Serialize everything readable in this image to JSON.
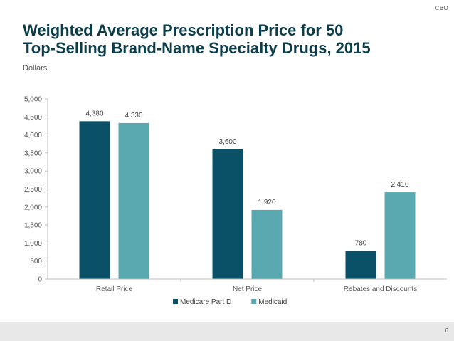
{
  "header": {
    "brand": "CBO",
    "title_line1": "Weighted Average Prescription Price for 50",
    "title_line2": "Top-Selling Brand-Name Specialty Drugs, 2015",
    "subtitle": "Dollars"
  },
  "chart_data": {
    "type": "bar",
    "title": "Weighted Average Prescription Price for 50 Top-Selling Brand-Name Specialty Drugs, 2015",
    "ylabel": "Dollars",
    "xlabel": "",
    "categories": [
      "Retail Price",
      "Net Price",
      "Rebates and Discounts"
    ],
    "series": [
      {
        "name": "Medicare Part D",
        "color": "#0a5168",
        "values": [
          4380,
          3600,
          780
        ]
      },
      {
        "name": "Medicaid",
        "color": "#5aa9b1",
        "values": [
          4330,
          1920,
          2410
        ]
      }
    ],
    "ylim": [
      0,
      5000
    ],
    "yticks": [
      0,
      500,
      1000,
      1500,
      2000,
      2500,
      3000,
      3500,
      4000,
      4500,
      5000
    ],
    "ytick_labels": [
      "0",
      "500",
      "1,000",
      "1,500",
      "2,000",
      "2,500",
      "3,000",
      "3,500",
      "4,000",
      "4,500",
      "5,000"
    ],
    "data_labels": [
      [
        "4,380",
        "3,600",
        "780"
      ],
      [
        "4,330",
        "1,920",
        "2,410"
      ]
    ],
    "grid": false,
    "legend_position": "bottom-center"
  },
  "footer": {
    "page_number": "6"
  }
}
